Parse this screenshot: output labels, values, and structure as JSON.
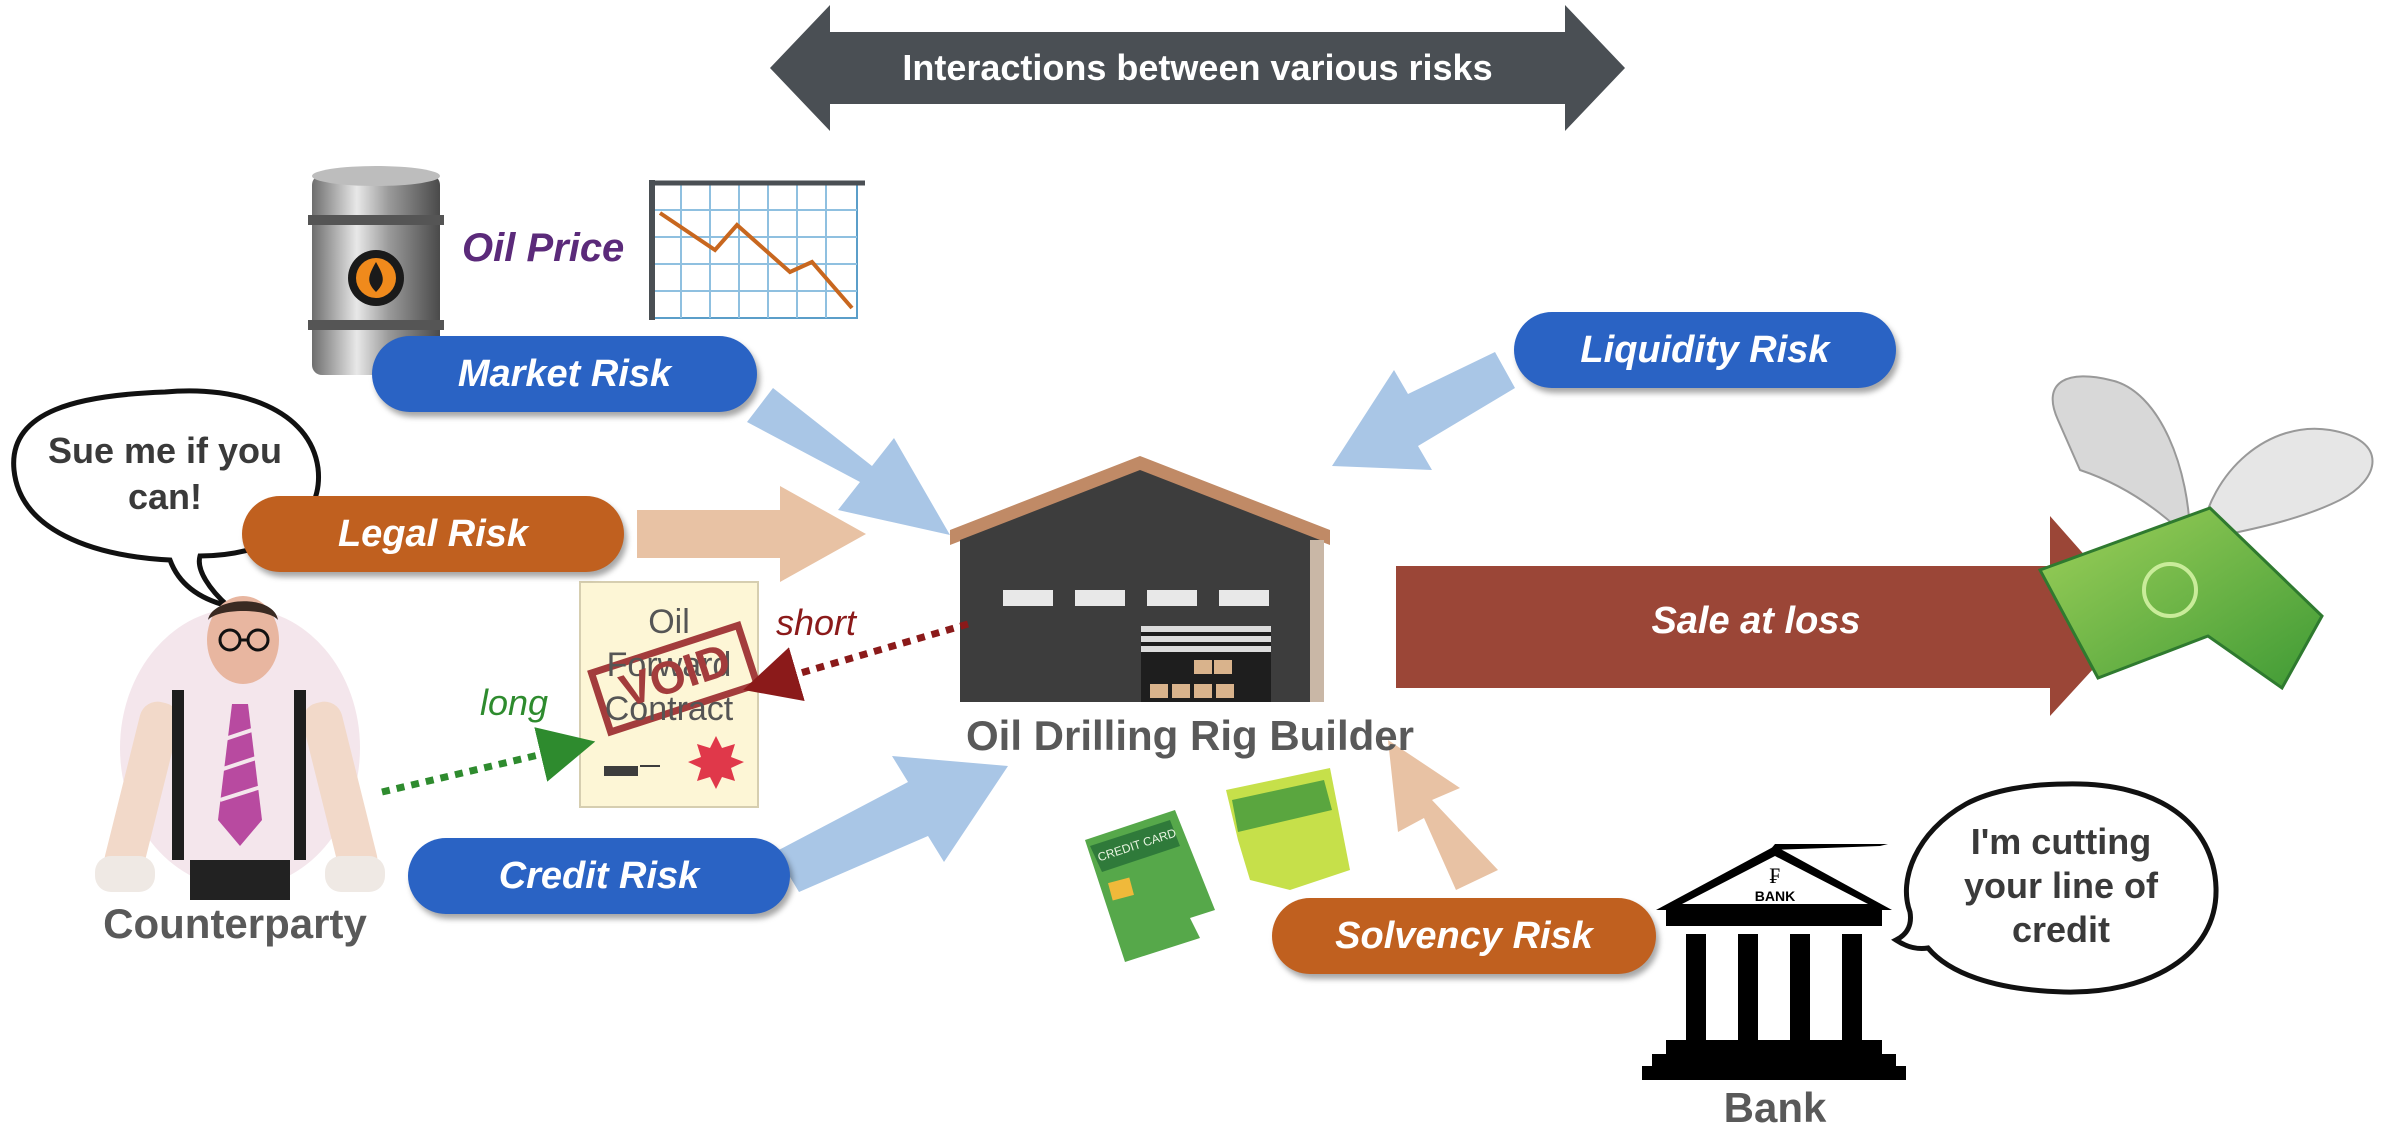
{
  "header": {
    "title": "Interactions between various risks"
  },
  "risks": {
    "market": "Market Risk",
    "legal": "Legal Risk",
    "credit": "Credit Risk",
    "liquidity": "Liquidity Risk",
    "solvency": "Solvency Risk"
  },
  "oil_price_label": "Oil Price",
  "company_label": "Oil Drilling Rig Builder",
  "sale_label": "Sale at loss",
  "counterparty": {
    "label": "Counterparty",
    "speech": "Sue me if you can!"
  },
  "bank": {
    "label": "Bank",
    "sign": "BANK",
    "speech": "I'm cutting your line of credit"
  },
  "contract": {
    "line1": "Oil",
    "line2": "Forward",
    "line3": "Contract",
    "stamp": "VOID"
  },
  "positions": {
    "long": "long",
    "short": "short"
  },
  "credit_card_text": "CREDIT CARD",
  "colors": {
    "blue_pill": "#2a63c4",
    "orange_pill": "#c0601f",
    "light_blue_arrow": "#a9c6e6",
    "peach_arrow": "#e8c2a4",
    "sale_arrow": "#9b4637",
    "header_arrow": "#4a4f54",
    "oil_price_text": "#5b2a7a",
    "long_green": "#2e8b2e",
    "short_red": "#8b1a1a"
  },
  "icons": [
    "oil-barrel-icon",
    "price-chart-icon",
    "warehouse-icon",
    "flying-money-icon",
    "bank-building-icon",
    "businessman-icon",
    "broken-credit-card-icon"
  ]
}
